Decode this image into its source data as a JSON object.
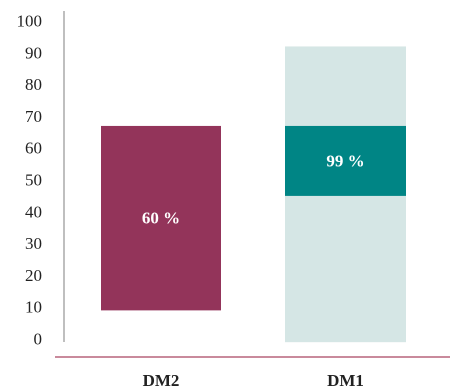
{
  "chart_data": {
    "type": "bar",
    "categories": [
      "DM2",
      "DM1"
    ],
    "ylim": [
      0,
      100
    ],
    "yticks": [
      0,
      10,
      20,
      30,
      40,
      50,
      60,
      70,
      80,
      90,
      100
    ],
    "grid": false,
    "legend": "none",
    "bars": [
      {
        "category": "DM2",
        "ranges": [
          {
            "low": 9,
            "high": 67,
            "color": "#93345a",
            "label": "60 %"
          }
        ]
      },
      {
        "category": "DM1",
        "ranges": [
          {
            "low": -1,
            "high": 92,
            "color": "#d5e6e5",
            "label": ""
          },
          {
            "low": 45,
            "high": 67,
            "color": "#008585",
            "label": "99 %"
          }
        ]
      }
    ],
    "colors": {
      "y_axis": "#7f7f7f",
      "x_axis": "#c98a9c",
      "text": "#222222",
      "bar_label": "#ffffff"
    }
  }
}
